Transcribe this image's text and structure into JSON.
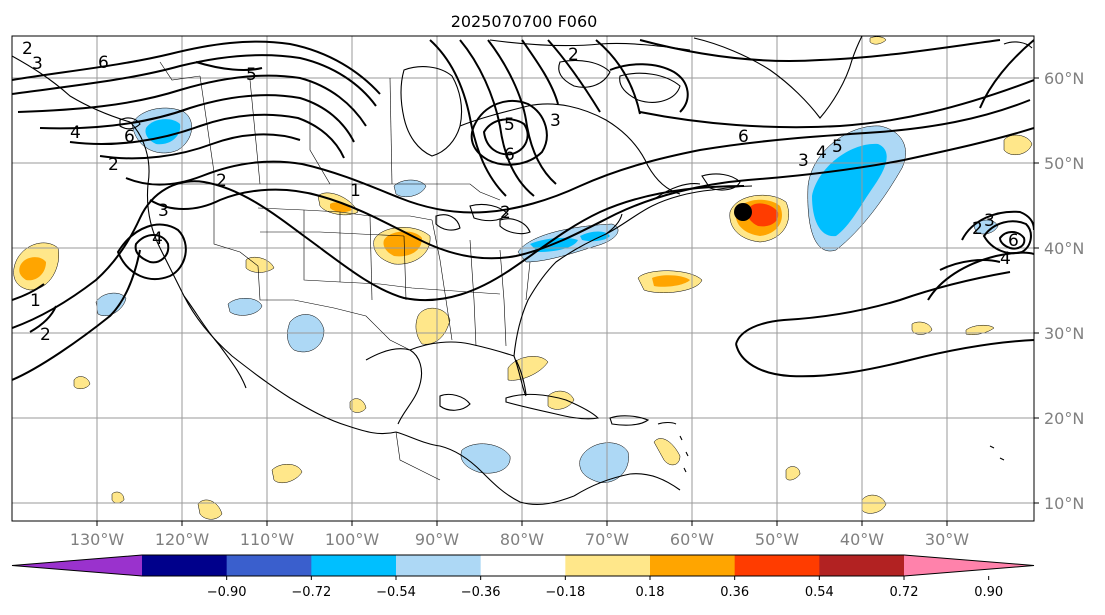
{
  "title": "2025070700 F060",
  "longitude_labels": [
    "130°W",
    "120°W",
    "110°W",
    "100°W",
    "90°W",
    "80°W",
    "70°W",
    "60°W",
    "50°W",
    "40°W",
    "30°W"
  ],
  "latitude_labels": [
    "60°N",
    "50°N",
    "40°N",
    "30°N",
    "20°N",
    "10°N"
  ],
  "contour_labels": [
    "2",
    "3",
    "6",
    "5",
    "4",
    "6",
    "2",
    "2",
    "3",
    "4",
    "1",
    "2",
    "1",
    "2",
    "5",
    "3",
    "6",
    "6",
    "3",
    "4",
    "5",
    "2",
    "3",
    "4",
    "6",
    "2"
  ],
  "colorbar": {
    "tick_labels": [
      "−0.90",
      "−0.72",
      "−0.54",
      "−0.36",
      "−0.18",
      "0.18",
      "0.36",
      "0.54",
      "0.72",
      "0.90"
    ],
    "colors": [
      "#9a32cd",
      "#00008b",
      "#3a5fcd",
      "#00bfff",
      "#add8f5",
      "#ffffff",
      "#ffe78a",
      "#ffa500",
      "#ff3c00",
      "#b22222",
      "#ff82ab"
    ]
  },
  "marker": {
    "label": "storm-center"
  },
  "colors": {
    "land_blue": "#00bfff",
    "light_blue": "#add8f5",
    "yellow": "#ffe78a",
    "orange": "#ffa500",
    "red": "#ff3c00",
    "grid": "#9a9a9a",
    "axis_text": "#808080"
  }
}
